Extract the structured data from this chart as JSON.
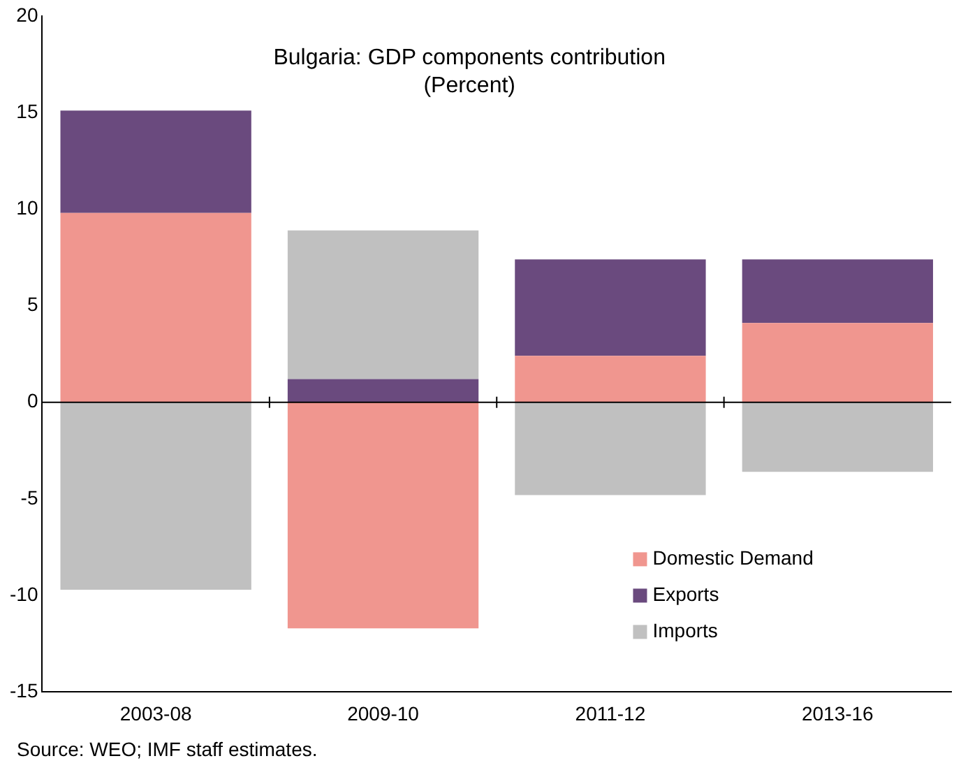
{
  "chart_data": {
    "type": "bar",
    "title": "Bulgaria: GDP components contribution\n(Percent)",
    "categories": [
      "2003-08",
      "2009-10",
      "2011-12",
      "2013-16"
    ],
    "stacked": true,
    "series": [
      {
        "name": "Domestic Demand",
        "color": "#f0968f",
        "values": [
          9.8,
          -11.7,
          2.4,
          4.1
        ]
      },
      {
        "name": "Exports",
        "color": "#6a4a7e",
        "values": [
          5.3,
          1.2,
          5.0,
          3.3
        ]
      },
      {
        "name": "Imports",
        "color": "#c0c0c0",
        "values": [
          -9.7,
          7.7,
          -4.8,
          -3.6
        ]
      }
    ],
    "ref_lines": [
      {
        "axis": "y",
        "value": 0,
        "color": "#000000"
      }
    ],
    "ylim": [
      -15,
      20
    ],
    "yticks": [
      -15,
      -10,
      -5,
      0,
      5,
      10,
      15,
      20
    ],
    "grid": false,
    "legend": "bottom right",
    "annotations": [
      "Source: WEO; IMF staff estimates."
    ]
  }
}
